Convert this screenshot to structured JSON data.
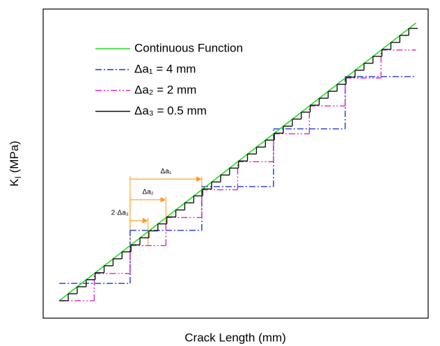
{
  "chart_data": {
    "type": "line",
    "xlabel": "Crack Length (mm)",
    "ylabel": {
      "main": "K",
      "sub": "I",
      "rest": " (MPa)"
    },
    "xlim": [
      0,
      21.48
    ],
    "ylim": [
      0,
      20
    ],
    "grid": false,
    "legend": "upper left",
    "series": [
      {
        "name": "Continuous Function",
        "color": "#22dd22",
        "kind": "line",
        "linestyle": "solid",
        "x": [
          0.9,
          20.8
        ],
        "values": [
          1.13,
          19.1
        ]
      },
      {
        "name": "Δa₁ = 4 mm",
        "color": "#2233cc",
        "kind": "step",
        "linestyle": "dashdot",
        "bins": [
          0.9,
          4.85,
          8.85,
          12.85,
          16.85,
          20.8
        ],
        "values": [
          2.25,
          5.68,
          8.51,
          12.25,
          15.63
        ]
      },
      {
        "name": "Δa₂ = 2 mm",
        "color": "#dd22cc",
        "kind": "step",
        "linestyle": "dashdotdot",
        "bins": [
          0.9,
          2.85,
          4.85,
          6.85,
          8.85,
          10.85,
          12.85,
          14.85,
          16.85,
          18.85,
          20.8
        ],
        "values": [
          1.13,
          2.89,
          4.7,
          6.51,
          8.31,
          10.12,
          11.93,
          13.73,
          15.54,
          17.35
        ]
      },
      {
        "name": "Δa₃ = 0.5 mm",
        "color": "#111111",
        "kind": "step",
        "linestyle": "solid",
        "bins": [
          0.9,
          1.4,
          1.9,
          2.4,
          2.9,
          3.4,
          3.9,
          4.4,
          4.9,
          5.4,
          5.9,
          6.4,
          6.9,
          7.4,
          7.9,
          8.4,
          8.9,
          9.4,
          9.9,
          10.4,
          10.9,
          11.4,
          11.9,
          12.4,
          12.9,
          13.4,
          13.9,
          14.4,
          14.9,
          15.4,
          15.9,
          16.4,
          16.9,
          17.4,
          17.9,
          18.4,
          18.9,
          19.4,
          19.9,
          20.4,
          20.9
        ],
        "values": [
          1.13,
          1.58,
          2.03,
          2.49,
          2.94,
          3.39,
          3.84,
          4.29,
          4.74,
          5.2,
          5.65,
          6.1,
          6.55,
          7.0,
          7.46,
          7.91,
          8.36,
          8.81,
          9.26,
          9.71,
          10.17,
          10.62,
          11.07,
          11.52,
          11.97,
          12.42,
          12.88,
          13.33,
          13.78,
          14.23,
          14.68,
          15.13,
          15.59,
          16.04,
          16.49,
          16.94,
          17.39,
          17.84,
          18.3,
          18.75
        ]
      }
    ],
    "annotations": [
      {
        "text": "Δa₁",
        "x": [
          4.85,
          8.85
        ],
        "y": 9.0,
        "color": "#ff9922"
      },
      {
        "text": "Δa₂",
        "x": [
          4.85,
          6.85
        ],
        "y": 7.66,
        "color": "#ff9922"
      },
      {
        "text": "2·Δa₃",
        "x": [
          4.85,
          5.85
        ],
        "y": 6.31,
        "color": "#ff9922"
      }
    ]
  }
}
